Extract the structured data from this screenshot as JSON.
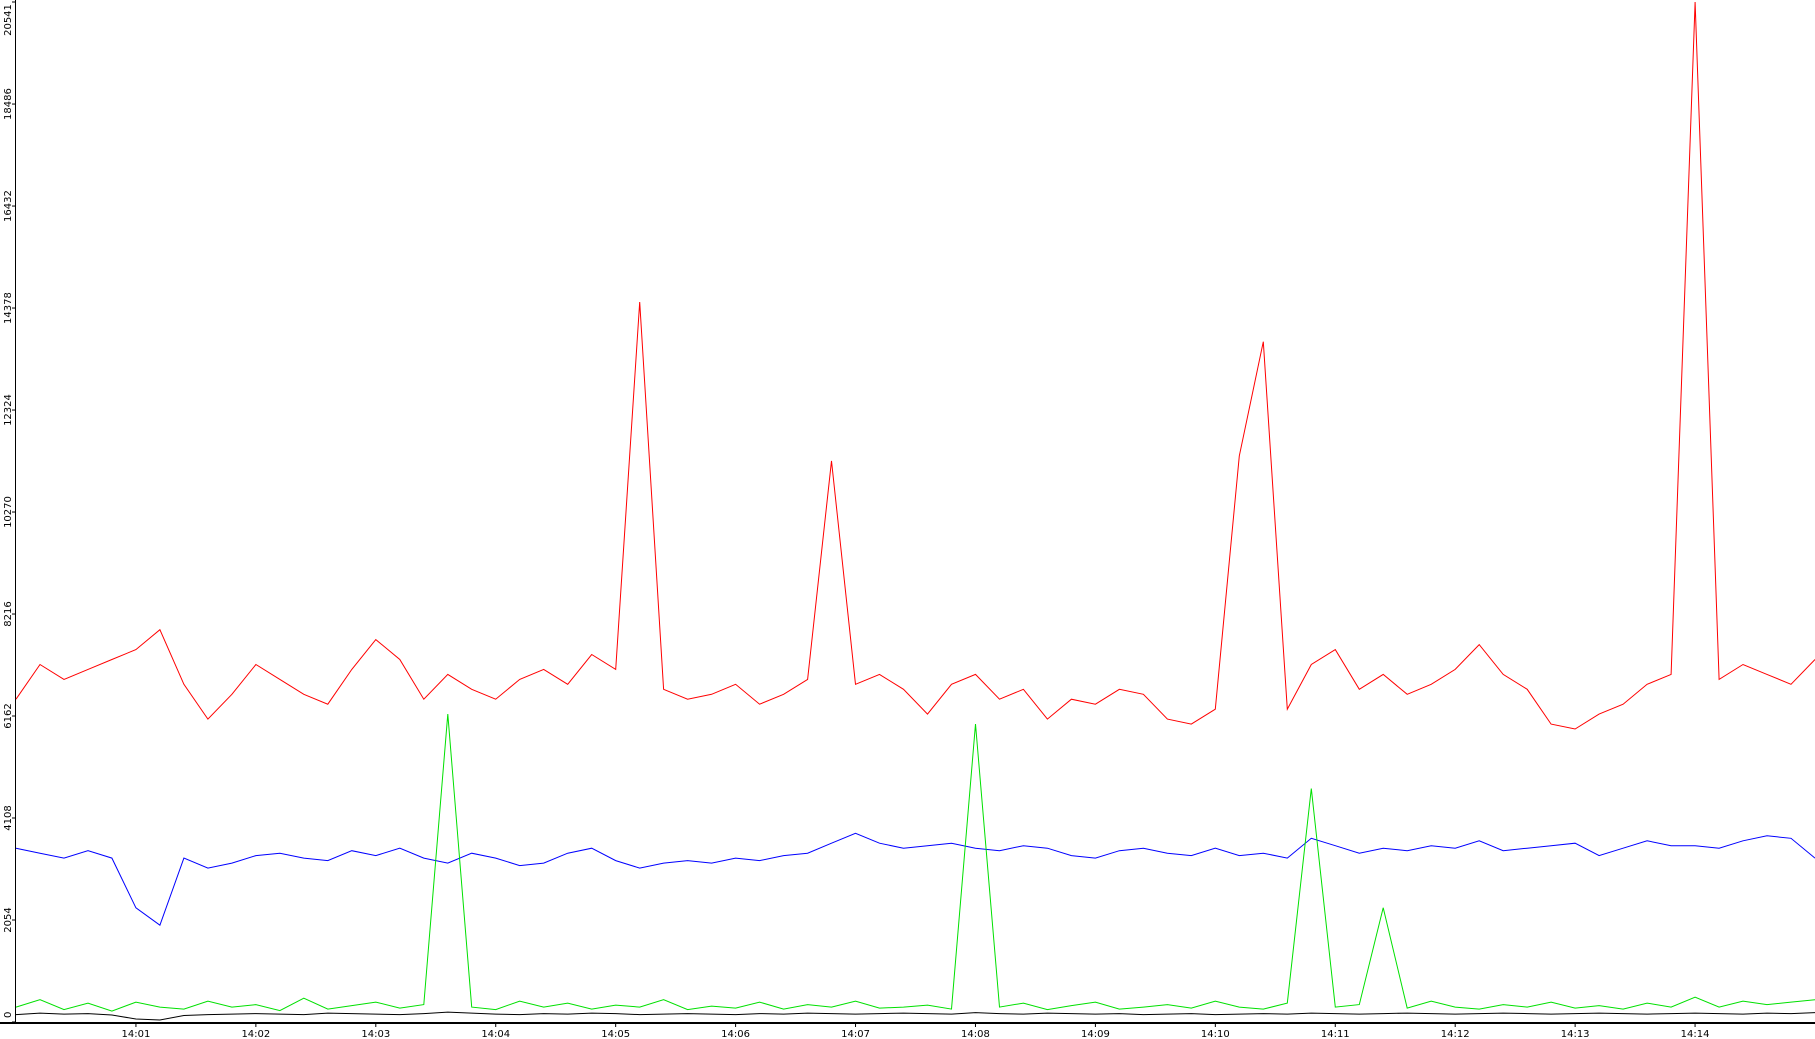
{
  "chart_data": {
    "type": "line",
    "x": [
      0,
      0.2,
      0.4,
      0.6,
      0.8,
      1,
      1.2,
      1.4,
      1.6,
      1.8,
      2,
      2.2,
      2.4,
      2.6,
      2.8,
      3,
      3.2,
      3.4,
      3.6,
      3.8,
      4,
      4.2,
      4.4,
      4.6,
      4.8,
      5,
      5.2,
      5.4,
      5.6,
      5.8,
      6,
      6.2,
      6.4,
      6.6,
      6.8,
      7,
      7.2,
      7.4,
      7.6,
      7.8,
      8,
      8.2,
      8.4,
      8.6,
      8.8,
      9,
      9.2,
      9.4,
      9.6,
      9.8,
      10,
      10.2,
      10.4,
      10.6,
      10.8,
      11,
      11.2,
      11.4,
      11.6,
      11.8,
      12,
      12.2,
      12.4,
      12.6,
      12.8,
      13,
      13.2,
      13.4,
      13.6,
      13.8,
      14,
      14.2,
      14.4,
      14.6,
      14.8,
      15
    ],
    "series": [
      {
        "color": "#ff0000",
        "values": [
          6500,
          7200,
          6900,
          7100,
          7300,
          7500,
          7900,
          6800,
          6100,
          6600,
          7200,
          6900,
          6600,
          6400,
          7100,
          7700,
          7300,
          6500,
          7000,
          6700,
          6500,
          6900,
          7100,
          6800,
          7400,
          7100,
          14500,
          6700,
          6500,
          6600,
          6800,
          6400,
          6600,
          6900,
          11300,
          6800,
          7000,
          6700,
          6200,
          6800,
          7000,
          6500,
          6700,
          6100,
          6500,
          6400,
          6700,
          6600,
          6100,
          6000,
          6300,
          11400,
          13700,
          6300,
          7200,
          7500,
          6700,
          7000,
          6600,
          6800,
          7100,
          7600,
          7000,
          6700,
          6000,
          5900,
          6200,
          6400,
          6800,
          7000,
          20541,
          6900,
          7200,
          7000,
          6800,
          7300
        ]
      },
      {
        "color": "#0000ff",
        "values": [
          3500,
          3400,
          3300,
          3450,
          3300,
          2300,
          1950,
          3300,
          3100,
          3200,
          3350,
          3400,
          3300,
          3250,
          3450,
          3350,
          3500,
          3300,
          3200,
          3400,
          3300,
          3150,
          3200,
          3400,
          3500,
          3250,
          3100,
          3200,
          3250,
          3200,
          3300,
          3250,
          3350,
          3400,
          3600,
          3800,
          3600,
          3500,
          3550,
          3600,
          3500,
          3450,
          3550,
          3500,
          3350,
          3300,
          3450,
          3500,
          3400,
          3350,
          3500,
          3350,
          3400,
          3300,
          3700,
          3550,
          3400,
          3500,
          3450,
          3550,
          3500,
          3650,
          3450,
          3500,
          3550,
          3600,
          3350,
          3500,
          3650,
          3550,
          3550,
          3500,
          3650,
          3750,
          3700,
          3300
        ]
      },
      {
        "color": "#00e000",
        "values": [
          300,
          450,
          250,
          380,
          220,
          400,
          300,
          260,
          420,
          300,
          350,
          230,
          480,
          260,
          330,
          400,
          280,
          350,
          6200,
          300,
          250,
          420,
          300,
          380,
          260,
          340,
          300,
          450,
          250,
          320,
          280,
          400,
          260,
          350,
          300,
          420,
          280,
          300,
          340,
          260,
          6000,
          300,
          380,
          250,
          330,
          400,
          260,
          300,
          350,
          280,
          420,
          300,
          260,
          380,
          4700,
          300,
          350,
          2300,
          280,
          420,
          300,
          260,
          350,
          300,
          400,
          280,
          330,
          260,
          380,
          300,
          500,
          300,
          420,
          350,
          400,
          450
        ]
      },
      {
        "color": "#000000",
        "values": [
          150,
          180,
          160,
          170,
          140,
          60,
          40,
          130,
          150,
          160,
          170,
          160,
          150,
          180,
          170,
          160,
          150,
          170,
          200,
          180,
          160,
          150,
          170,
          160,
          180,
          170,
          150,
          160,
          170,
          160,
          150,
          170,
          160,
          180,
          170,
          160,
          170,
          180,
          170,
          160,
          190,
          170,
          160,
          180,
          170,
          160,
          170,
          150,
          160,
          170,
          150,
          160,
          170,
          160,
          180,
          170,
          160,
          170,
          180,
          170,
          160,
          170,
          180,
          170,
          160,
          170,
          180,
          170,
          160,
          170,
          180,
          170,
          160,
          180,
          170,
          190
        ]
      }
    ],
    "xlim": [
      0,
      15
    ],
    "xticks": [
      {
        "value": 1,
        "label": "14:01"
      },
      {
        "value": 2,
        "label": "14:02"
      },
      {
        "value": 3,
        "label": "14:03"
      },
      {
        "value": 4,
        "label": "14:04"
      },
      {
        "value": 5,
        "label": "14:05"
      },
      {
        "value": 6,
        "label": "14:06"
      },
      {
        "value": 7,
        "label": "14:07"
      },
      {
        "value": 8,
        "label": "14:08"
      },
      {
        "value": 9,
        "label": "14:09"
      },
      {
        "value": 10,
        "label": "14:10"
      },
      {
        "value": 11,
        "label": "14:11"
      },
      {
        "value": 12,
        "label": "14:12"
      },
      {
        "value": 13,
        "label": "14:13"
      },
      {
        "value": 14,
        "label": "14:14"
      }
    ],
    "ylim": [
      0,
      20541
    ],
    "yticks": [
      0,
      2054,
      4108,
      6162,
      8216,
      10270,
      12324,
      14378,
      16432,
      18486,
      20541
    ]
  }
}
